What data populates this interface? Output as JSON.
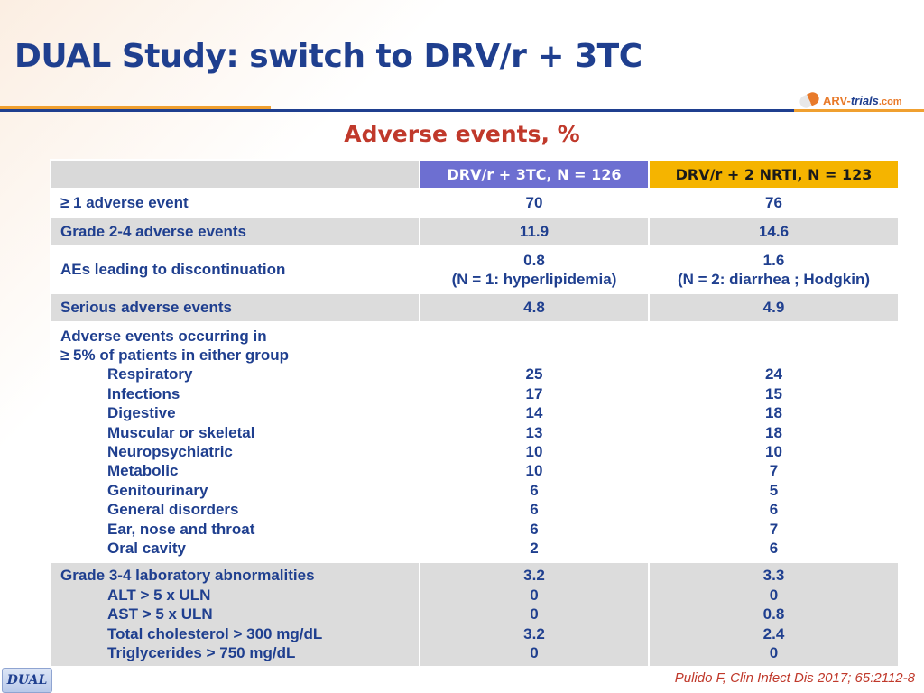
{
  "title": "DUAL Study: switch to DRV/r + 3TC",
  "logo": {
    "part1": "ARV-",
    "part2": "trials",
    "part3": ".com"
  },
  "subtitle": "Adverse events, %",
  "table": {
    "headers": [
      "",
      "DRV/r + 3TC, N = 126",
      "DRV/r + 2 NRTI, N = 123"
    ],
    "rows": [
      {
        "label": [
          "≥ 1 adverse event"
        ],
        "col1": [
          "70"
        ],
        "col2": [
          "76"
        ]
      },
      {
        "label": [
          "Grade 2-4 adverse events"
        ],
        "col1": [
          "11.9"
        ],
        "col2": [
          "14.6"
        ]
      },
      {
        "label": [
          "AEs leading to discontinuation"
        ],
        "col1": [
          "0.8",
          "(N = 1: hyperlipidemia)"
        ],
        "col2": [
          "1.6",
          "(N = 2: diarrhea ; Hodgkin)"
        ]
      },
      {
        "label": [
          "Serious adverse events"
        ],
        "col1": [
          "4.8"
        ],
        "col2": [
          "4.9"
        ]
      },
      {
        "label": [
          "Adverse events occurring in",
          "≥ 5% of patients in either group"
        ],
        "sublabels": [
          "Respiratory",
          "Infections",
          "Digestive",
          "Muscular or skeletal",
          "Neuropsychiatric",
          "Metabolic",
          "Genitourinary",
          "General disorders",
          "Ear, nose and throat",
          "Oral cavity"
        ],
        "col1": [
          "25",
          "17",
          "14",
          "13",
          "10",
          "10",
          "6",
          "6",
          "6",
          "2"
        ],
        "col2": [
          "24",
          "15",
          "18",
          "18",
          "10",
          "7",
          "5",
          "6",
          "7",
          "6"
        ]
      },
      {
        "label": [
          "Grade 3-4 laboratory abnormalities"
        ],
        "sublabels": [
          "ALT > 5 x ULN",
          "AST > 5 x ULN",
          "Total cholesterol > 300 mg/dL",
          "Triglycerides > 750 mg/dL"
        ],
        "col1": [
          "3.2",
          "0",
          "0",
          "3.2",
          "0"
        ],
        "col2": [
          "3.3",
          "0",
          "0.8",
          "2.4",
          "0"
        ]
      }
    ]
  },
  "footer": {
    "tag": "DUAL",
    "citation": "Pulido F, Clin Infect Dis 2017; 65:2112-8"
  }
}
